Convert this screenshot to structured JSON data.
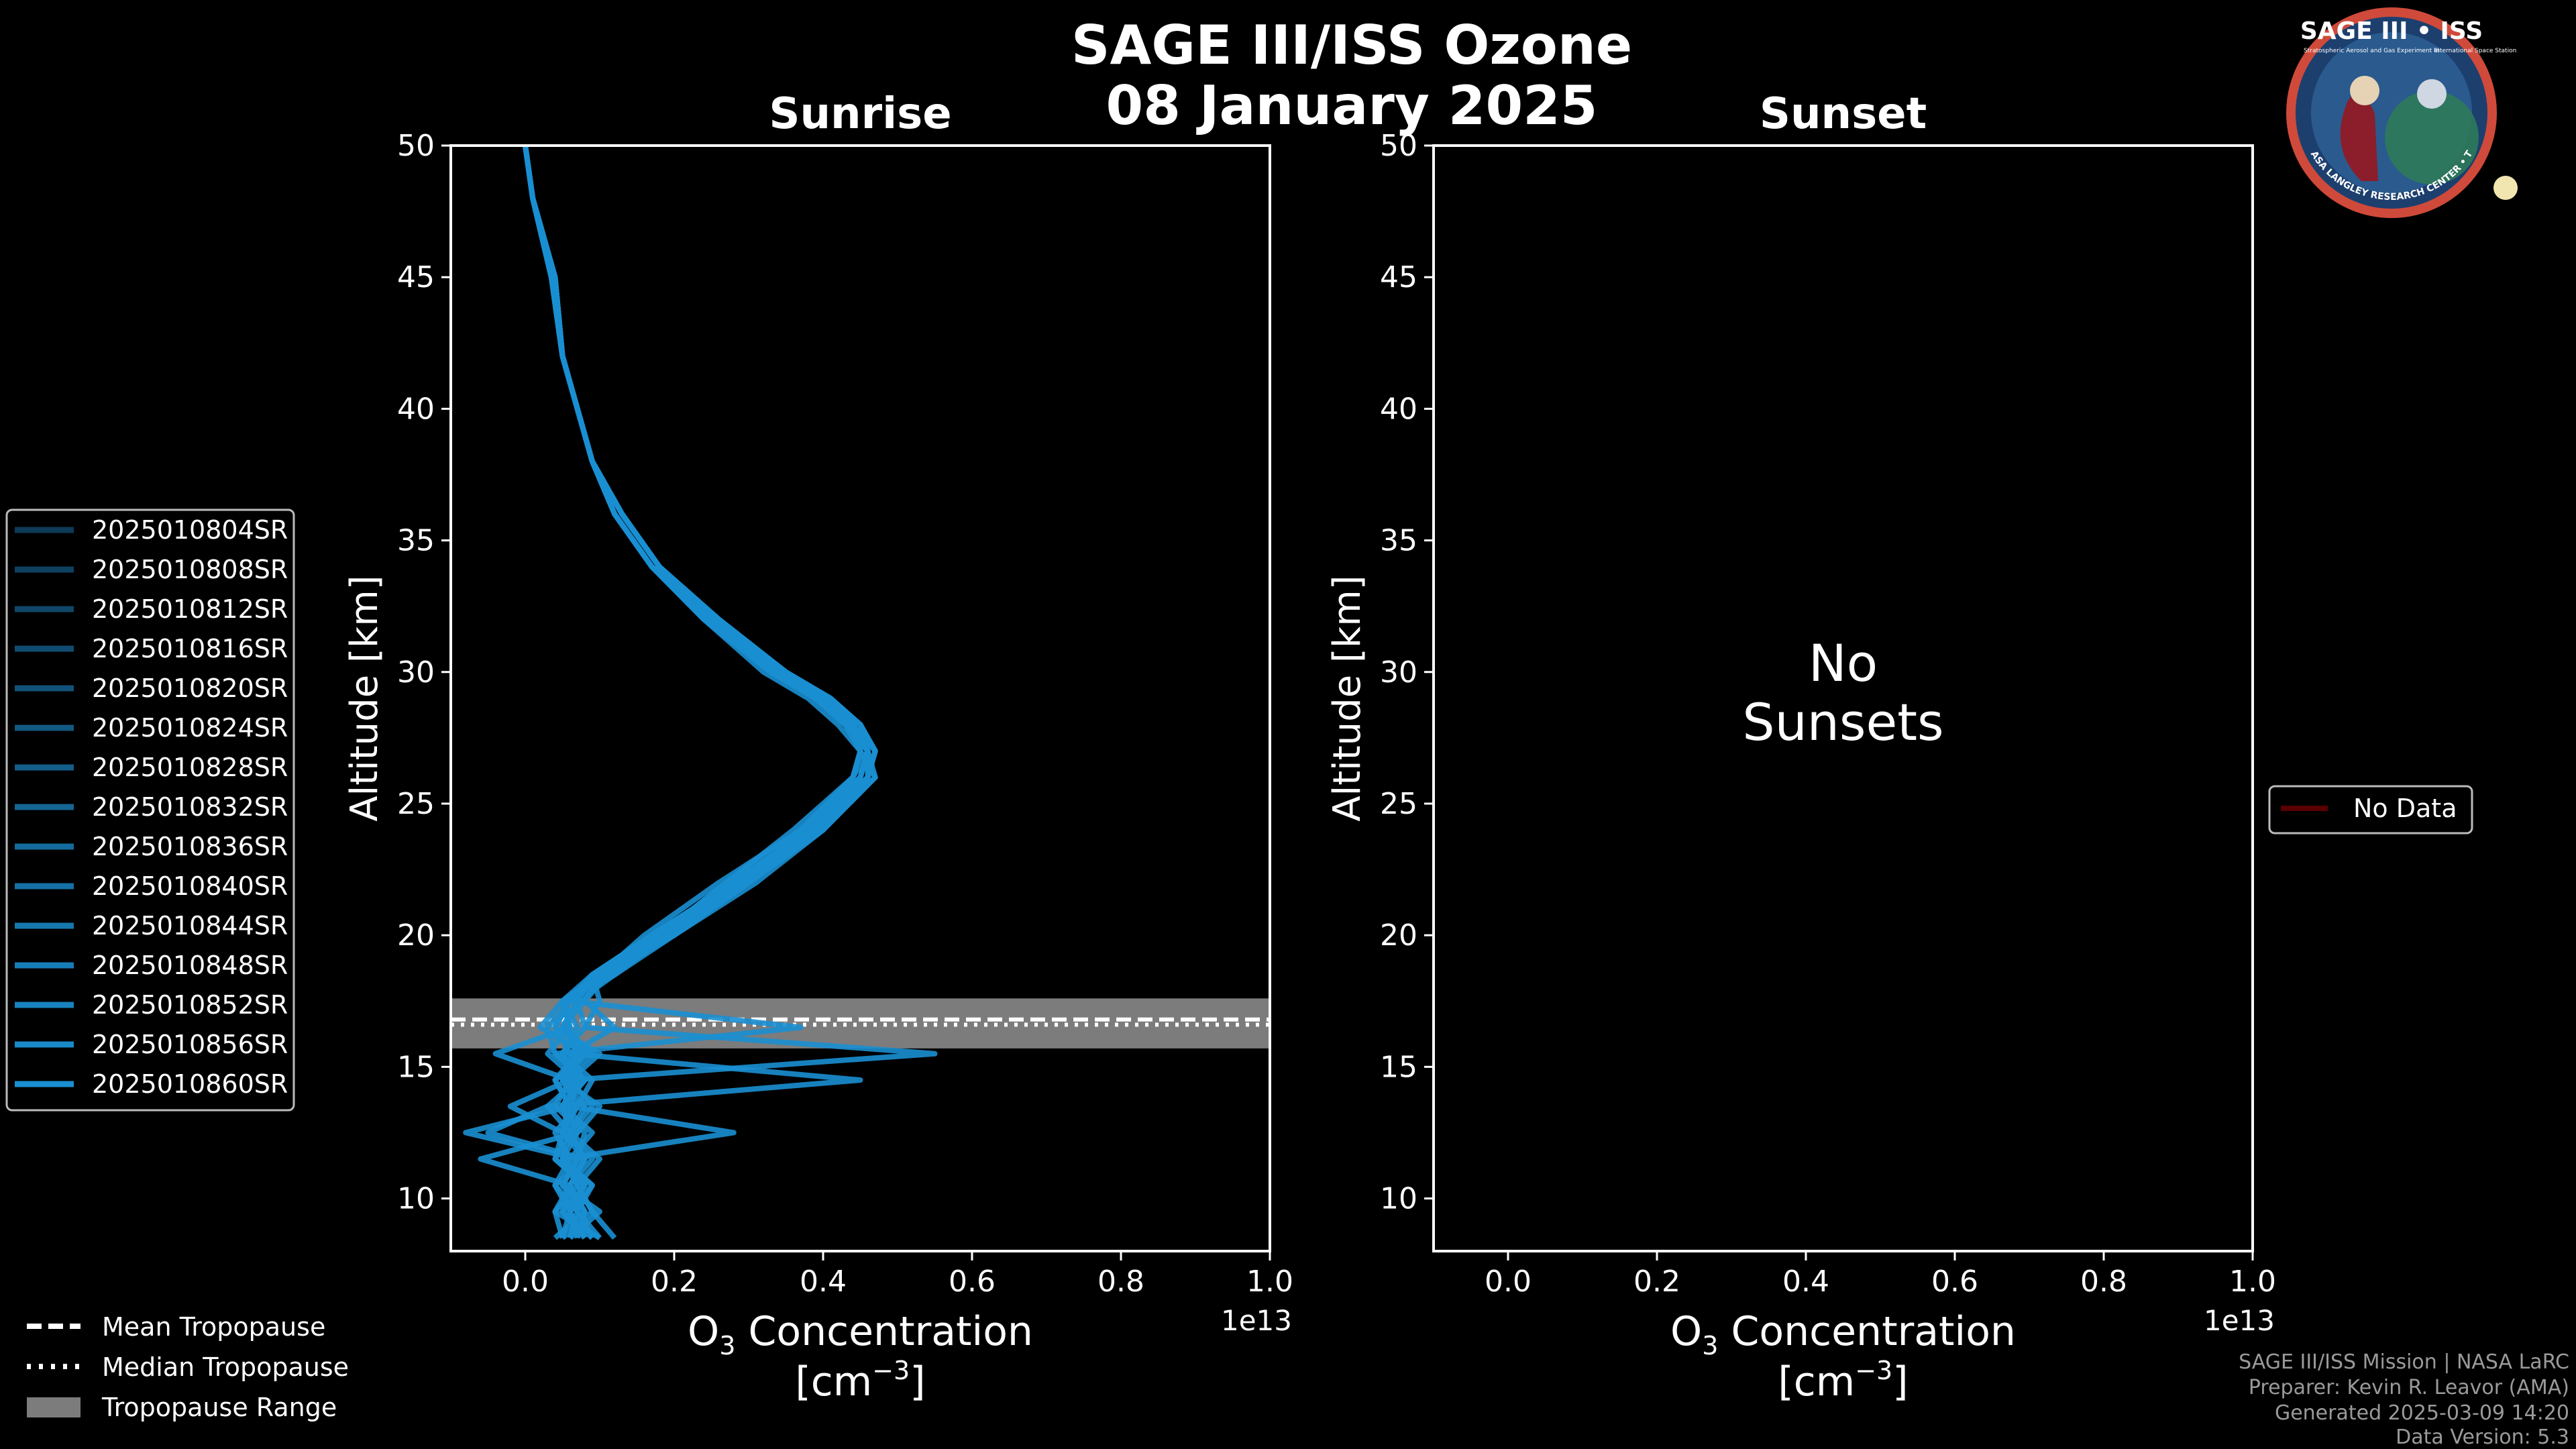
{
  "figure": {
    "title_line1": "SAGE III/ISS Ozone",
    "title_line2": "08 January 2025",
    "badge": {
      "title": "SAGE III • ISS",
      "subtitle1": "Stratospheric Aerosol and Gas Experiment III",
      "subtitle2": "International Space Station",
      "ring_text": "BALL • NASA LANGLEY RESEARCH CENTER • TAS • ESA"
    },
    "footer": [
      "SAGE III/ISS Mission | NASA LaRC",
      "Preparer: Kevin R. Leavor (AMA)",
      "Generated 2025-03-09 14:20",
      "Data Version: 5.3"
    ],
    "bottom_legend": [
      {
        "label": "Mean Tropopause",
        "style": "dashed"
      },
      {
        "label": "Median Tropopause",
        "style": "dotted"
      },
      {
        "label": "Tropopause Range",
        "style": "patch"
      }
    ],
    "colors": {
      "profile": "#1a8fd1",
      "profile_dark": "#0d3a57",
      "trop_band": "#7c7c7c",
      "nodata": "#5a0000"
    }
  },
  "chart_data": [
    {
      "type": "line",
      "title": "Sunrise",
      "xlabel_main": "O",
      "xlabel_sub": "3",
      "xlabel_rest": " Concentration",
      "xunit_prefix": "[cm",
      "xunit_sup": "−3",
      "xunit_suffix": "]",
      "offset_label": "1e13",
      "ylabel": "Altitude [km]",
      "xlim": [
        -0.1,
        1.0
      ],
      "ylim": [
        8,
        50
      ],
      "xticks": [
        "0.0",
        "0.2",
        "0.4",
        "0.6",
        "0.8",
        "1.0"
      ],
      "xtick_values": [
        0.0,
        0.2,
        0.4,
        0.6,
        0.8,
        1.0
      ],
      "yticks": [
        "10",
        "15",
        "20",
        "25",
        "30",
        "35",
        "40",
        "45",
        "50"
      ],
      "ytick_values": [
        10,
        15,
        20,
        25,
        30,
        35,
        40,
        45,
        50
      ],
      "tropopause": {
        "mean": 16.8,
        "median": 16.6,
        "range": [
          15.7,
          17.6
        ]
      },
      "legend": [
        "2025010804SR",
        "2025010808SR",
        "2025010812SR",
        "2025010816SR",
        "2025010820SR",
        "2025010824SR",
        "2025010828SR",
        "2025010832SR",
        "2025010836SR",
        "2025010840SR",
        "2025010844SR",
        "2025010848SR",
        "2025010852SR",
        "2025010856SR",
        "2025010860SR"
      ],
      "series": [
        {
          "name": "2025010804SR",
          "altitude": [
            8.5,
            9.5,
            10.5,
            11.5,
            12.5,
            13.5,
            14.5,
            15.5,
            16.5,
            17.5,
            18.5,
            20,
            22,
            24,
            26,
            27,
            28,
            29,
            30,
            32,
            34,
            36,
            38,
            40,
            42,
            45,
            48,
            50
          ],
          "o3": [
            0.12,
            0.09,
            0.07,
            0.1,
            0.06,
            0.05,
            0.08,
            0.04,
            0.03,
            0.06,
            0.09,
            0.17,
            0.28,
            0.38,
            0.45,
            0.46,
            0.44,
            0.4,
            0.34,
            0.25,
            0.18,
            0.13,
            0.09,
            0.07,
            0.05,
            0.04,
            0.01,
            0.0
          ]
        },
        {
          "name": "2025010808SR",
          "altitude": [
            8.5,
            9.5,
            10.5,
            11.5,
            12.5,
            13.5,
            14.5,
            15.5,
            16.5,
            17.5,
            18.5,
            20,
            22,
            24,
            26,
            27,
            28,
            29,
            30,
            32,
            34,
            36,
            38,
            40,
            42,
            45,
            48,
            50
          ],
          "o3": [
            0.08,
            0.06,
            0.09,
            0.05,
            0.07,
            0.1,
            0.05,
            0.08,
            0.02,
            0.05,
            0.11,
            0.2,
            0.3,
            0.4,
            0.47,
            0.45,
            0.42,
            0.38,
            0.32,
            0.24,
            0.17,
            0.12,
            0.09,
            0.07,
            0.05,
            0.035,
            0.01,
            0.0
          ]
        },
        {
          "name": "2025010812SR",
          "altitude": [
            8.5,
            9.5,
            10.5,
            11.5,
            12.5,
            13.5,
            14.5,
            15.5,
            16.5,
            17.5,
            18.5,
            20,
            22,
            24,
            26,
            27,
            28,
            29,
            30,
            32,
            34,
            36,
            38,
            40,
            42,
            45,
            48,
            50
          ],
          "o3": [
            0.05,
            0.04,
            0.06,
            0.08,
            -0.05,
            0.03,
            0.45,
            0.06,
            0.12,
            0.08,
            0.1,
            0.16,
            0.26,
            0.37,
            0.44,
            0.45,
            0.43,
            0.39,
            0.33,
            0.25,
            0.18,
            0.13,
            0.09,
            0.07,
            0.05,
            0.035,
            0.01,
            0.0
          ]
        },
        {
          "name": "2025010816SR",
          "altitude": [
            8.5,
            9.5,
            10.5,
            11.5,
            12.5,
            13.5,
            14.5,
            15.5,
            16.5,
            17.5,
            18.5,
            20,
            22,
            24,
            26,
            27,
            28,
            29,
            30,
            32,
            34,
            36,
            38,
            40,
            42,
            45,
            48,
            50
          ],
          "o3": [
            0.1,
            0.07,
            0.04,
            0.06,
            0.09,
            0.05,
            0.07,
            0.03,
            0.06,
            0.05,
            0.12,
            0.19,
            0.29,
            0.39,
            0.46,
            0.47,
            0.45,
            0.41,
            0.35,
            0.26,
            0.18,
            0.13,
            0.09,
            0.07,
            0.05,
            0.04,
            0.01,
            0.0
          ]
        },
        {
          "name": "2025010820SR",
          "altitude": [
            8.5,
            9.5,
            10.5,
            11.5,
            12.5,
            13.5,
            14.5,
            15.5,
            16.5,
            17.5,
            18.5,
            20,
            22,
            24,
            26,
            27,
            28,
            29,
            30,
            32,
            34,
            36,
            38,
            40,
            42,
            45,
            48,
            50
          ],
          "o3": [
            0.06,
            0.1,
            0.05,
            0.07,
            -0.08,
            0.06,
            0.04,
            0.07,
            0.05,
            0.07,
            0.09,
            0.18,
            0.27,
            0.36,
            0.44,
            0.46,
            0.44,
            0.4,
            0.34,
            0.25,
            0.17,
            0.12,
            0.09,
            0.07,
            0.05,
            0.035,
            0.01,
            0.0
          ]
        },
        {
          "name": "2025010824SR",
          "altitude": [
            8.5,
            9.5,
            10.5,
            11.5,
            12.5,
            13.5,
            14.5,
            15.5,
            16.5,
            17.5,
            18.5,
            20,
            22,
            24,
            26,
            27,
            28,
            29,
            30,
            32,
            34,
            36,
            38,
            40,
            42,
            45,
            48,
            50
          ],
          "o3": [
            0.09,
            0.05,
            0.08,
            0.04,
            0.06,
            0.09,
            0.06,
            0.1,
            0.04,
            0.06,
            0.1,
            0.2,
            0.3,
            0.39,
            0.46,
            0.47,
            0.44,
            0.4,
            0.33,
            0.25,
            0.18,
            0.13,
            0.09,
            0.07,
            0.05,
            0.04,
            0.01,
            0.0
          ]
        },
        {
          "name": "2025010828SR",
          "altitude": [
            8.5,
            9.5,
            10.5,
            11.5,
            12.5,
            13.5,
            14.5,
            15.5,
            16.5,
            17.5,
            18.5,
            20,
            22,
            24,
            26,
            27,
            28,
            29,
            30,
            32,
            34,
            36,
            38,
            40,
            42,
            45,
            48,
            50
          ],
          "o3": [
            0.04,
            0.08,
            0.06,
            0.09,
            0.05,
            -0.02,
            0.06,
            0.55,
            0.08,
            0.1,
            0.09,
            0.17,
            0.28,
            0.38,
            0.45,
            0.46,
            0.44,
            0.4,
            0.34,
            0.25,
            0.18,
            0.13,
            0.09,
            0.07,
            0.05,
            0.035,
            0.01,
            0.0
          ]
        },
        {
          "name": "2025010832SR",
          "altitude": [
            8.5,
            9.5,
            10.5,
            11.5,
            12.5,
            13.5,
            14.5,
            15.5,
            16.5,
            17.5,
            18.5,
            20,
            22,
            24,
            26,
            27,
            28,
            29,
            30,
            32,
            34,
            36,
            38,
            40,
            42,
            45,
            48,
            50
          ],
          "o3": [
            0.07,
            0.06,
            0.04,
            0.08,
            0.06,
            0.03,
            0.07,
            0.05,
            0.07,
            0.05,
            0.11,
            0.19,
            0.29,
            0.4,
            0.47,
            0.46,
            0.43,
            0.39,
            0.33,
            0.24,
            0.17,
            0.12,
            0.09,
            0.07,
            0.05,
            0.035,
            0.01,
            0.0
          ]
        },
        {
          "name": "2025010836SR",
          "altitude": [
            8.5,
            9.5,
            10.5,
            11.5,
            12.5,
            13.5,
            14.5,
            15.5,
            16.5,
            17.5,
            18.5,
            20,
            22,
            24,
            26,
            27,
            28,
            29,
            30,
            32,
            34,
            36,
            38,
            40,
            42,
            45,
            48,
            50
          ],
          "o3": [
            0.05,
            0.09,
            0.07,
            0.05,
            0.28,
            0.06,
            0.04,
            0.08,
            0.05,
            0.07,
            0.09,
            0.18,
            0.28,
            0.38,
            0.45,
            0.46,
            0.45,
            0.41,
            0.35,
            0.26,
            0.18,
            0.13,
            0.09,
            0.07,
            0.05,
            0.04,
            0.01,
            0.0
          ]
        },
        {
          "name": "2025010840SR",
          "altitude": [
            8.5,
            9.5,
            10.5,
            11.5,
            12.5,
            13.5,
            14.5,
            15.5,
            16.5,
            17.5,
            18.5,
            20,
            22,
            24,
            26,
            27,
            28,
            29,
            30,
            32,
            34,
            36,
            38,
            40,
            42,
            45,
            48,
            50
          ],
          "o3": [
            0.08,
            0.05,
            0.06,
            -0.06,
            0.07,
            0.05,
            0.08,
            0.04,
            0.37,
            0.06,
            0.1,
            0.19,
            0.3,
            0.39,
            0.46,
            0.47,
            0.45,
            0.4,
            0.34,
            0.25,
            0.18,
            0.13,
            0.09,
            0.07,
            0.05,
            0.04,
            0.01,
            0.0
          ]
        },
        {
          "name": "2025010844SR",
          "altitude": [
            8.5,
            9.5,
            10.5,
            11.5,
            12.5,
            13.5,
            14.5,
            15.5,
            16.5,
            17.5,
            18.5,
            20,
            22,
            24,
            26,
            27,
            28,
            29,
            30,
            32,
            34,
            36,
            38,
            40,
            42,
            45,
            48,
            50
          ],
          "o3": [
            0.06,
            0.07,
            0.09,
            0.05,
            0.06,
            0.08,
            0.05,
            0.07,
            0.06,
            0.05,
            0.1,
            0.18,
            0.27,
            0.37,
            0.44,
            0.45,
            0.44,
            0.4,
            0.34,
            0.25,
            0.18,
            0.13,
            0.09,
            0.07,
            0.05,
            0.035,
            0.01,
            0.0
          ]
        },
        {
          "name": "2025010848SR",
          "altitude": [
            8.5,
            9.5,
            10.5,
            11.5,
            12.5,
            13.5,
            14.5,
            15.5,
            16.5,
            17.5,
            18.5,
            20,
            22,
            24,
            26,
            27,
            28,
            29,
            30,
            32,
            34,
            36,
            38,
            40,
            42,
            45,
            48,
            50
          ],
          "o3": [
            0.1,
            0.04,
            0.07,
            0.06,
            0.04,
            0.07,
            0.09,
            0.05,
            0.08,
            0.07,
            0.12,
            0.2,
            0.31,
            0.4,
            0.46,
            0.46,
            0.43,
            0.39,
            0.33,
            0.24,
            0.17,
            0.12,
            0.09,
            0.07,
            0.05,
            0.035,
            0.01,
            0.0
          ]
        },
        {
          "name": "2025010852SR",
          "altitude": [
            8.5,
            9.5,
            10.5,
            11.5,
            12.5,
            13.5,
            14.5,
            15.5,
            16.5,
            17.5,
            18.5,
            20,
            22,
            24,
            26,
            27,
            28,
            29,
            30,
            32,
            34,
            36,
            38,
            40,
            42,
            45,
            48,
            50
          ],
          "o3": [
            0.07,
            0.08,
            0.05,
            0.07,
            0.08,
            0.04,
            0.06,
            -0.04,
            0.06,
            0.05,
            0.09,
            0.17,
            0.28,
            0.38,
            0.45,
            0.46,
            0.44,
            0.4,
            0.34,
            0.25,
            0.18,
            0.13,
            0.09,
            0.07,
            0.05,
            0.04,
            0.01,
            0.0
          ]
        },
        {
          "name": "2025010856SR",
          "altitude": [
            8.5,
            9.5,
            10.5,
            11.5,
            12.5,
            13.5,
            14.5,
            15.5,
            16.5,
            17.5,
            18.5,
            20,
            22,
            24,
            26,
            27,
            28,
            29,
            30,
            32,
            34,
            36,
            38,
            40,
            42,
            45,
            48,
            50
          ],
          "o3": [
            0.05,
            0.06,
            0.08,
            0.04,
            0.05,
            0.07,
            0.05,
            0.09,
            0.05,
            0.08,
            0.11,
            0.19,
            0.29,
            0.39,
            0.46,
            0.47,
            0.45,
            0.41,
            0.35,
            0.26,
            0.18,
            0.13,
            0.09,
            0.07,
            0.05,
            0.04,
            0.01,
            0.0
          ]
        },
        {
          "name": "2025010860SR",
          "altitude": [
            8.5,
            9.5,
            10.5,
            11.5,
            12.5,
            13.5,
            14.5,
            15.5,
            16.5,
            17.5,
            18.5,
            20,
            22,
            24,
            26,
            27,
            28,
            29,
            30,
            32,
            34,
            36,
            38,
            40,
            42,
            45,
            48,
            50
          ],
          "o3": [
            0.09,
            0.07,
            0.06,
            0.08,
            0.05,
            0.06,
            0.07,
            0.06,
            0.04,
            0.06,
            0.1,
            0.18,
            0.29,
            0.39,
            0.46,
            0.46,
            0.44,
            0.4,
            0.34,
            0.25,
            0.18,
            0.13,
            0.09,
            0.07,
            0.05,
            0.035,
            0.01,
            0.0
          ]
        }
      ]
    },
    {
      "type": "line",
      "title": "Sunset",
      "xlabel_main": "O",
      "xlabel_sub": "3",
      "xlabel_rest": " Concentration",
      "xunit_prefix": "[cm",
      "xunit_sup": "−3",
      "xunit_suffix": "]",
      "offset_label": "1e13",
      "ylabel": "Altitude [km]",
      "xlim": [
        -0.1,
        1.0
      ],
      "ylim": [
        8,
        50
      ],
      "xticks": [
        "0.0",
        "0.2",
        "0.4",
        "0.6",
        "0.8",
        "1.0"
      ],
      "xtick_values": [
        0.0,
        0.2,
        0.4,
        0.6,
        0.8,
        1.0
      ],
      "yticks": [
        "10",
        "15",
        "20",
        "25",
        "30",
        "35",
        "40",
        "45",
        "50"
      ],
      "ytick_values": [
        10,
        15,
        20,
        25,
        30,
        35,
        40,
        45,
        50
      ],
      "annotation_line1": "No",
      "annotation_line2": "Sunsets",
      "legend": [
        "No Data"
      ],
      "series": []
    }
  ]
}
